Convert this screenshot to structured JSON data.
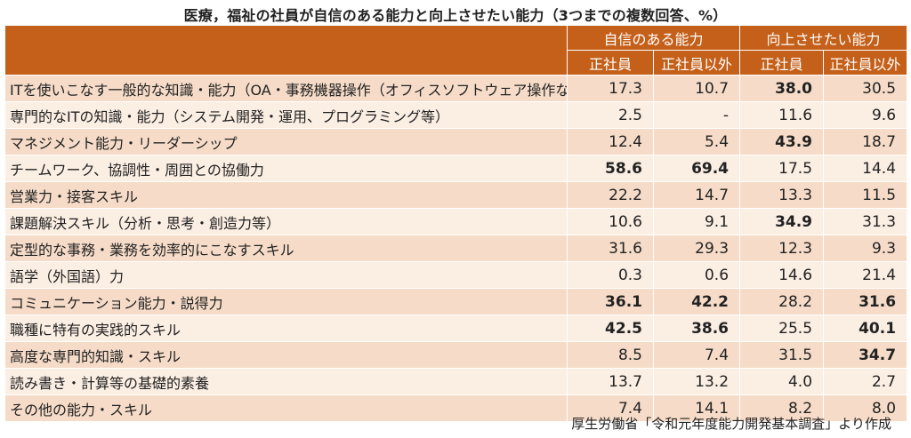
{
  "title": "医療，福祉の社員が自信のある能力と向上させたい能力（3つまでの複数回答、%）",
  "header": {
    "group1": "自信のある能力",
    "group2": "向上させたい能力",
    "sub": [
      "正社員",
      "正社員以外",
      "正社員",
      "正社員以外"
    ]
  },
  "rows": [
    {
      "label": "ITを使いこなす一般的な知識・能力（OA・事務機器操作（オフィスソフトウェア操作など））",
      "values": [
        "17.3",
        "10.7",
        "38.0",
        "30.5"
      ],
      "bold": [
        false,
        false,
        true,
        false
      ]
    },
    {
      "label": "専門的なITの知識・能力（システム開発・運用、プログラミング等）",
      "values": [
        "2.5",
        "-",
        "11.6",
        "9.6"
      ],
      "bold": [
        false,
        false,
        false,
        false
      ]
    },
    {
      "label": "マネジメント能力・リーダーシップ",
      "values": [
        "12.4",
        "5.4",
        "43.9",
        "18.7"
      ],
      "bold": [
        false,
        false,
        true,
        false
      ]
    },
    {
      "label": "チームワーク、協調性・周囲との協働力",
      "values": [
        "58.6",
        "69.4",
        "17.5",
        "14.4"
      ],
      "bold": [
        true,
        true,
        false,
        false
      ]
    },
    {
      "label": "営業力・接客スキル",
      "values": [
        "22.2",
        "14.7",
        "13.3",
        "11.5"
      ],
      "bold": [
        false,
        false,
        false,
        false
      ]
    },
    {
      "label": "課題解決スキル（分析・思考・創造力等）",
      "values": [
        "10.6",
        "9.1",
        "34.9",
        "31.3"
      ],
      "bold": [
        false,
        false,
        true,
        false
      ]
    },
    {
      "label": "定型的な事務・業務を効率的にこなすスキル",
      "values": [
        "31.6",
        "29.3",
        "12.3",
        "9.3"
      ],
      "bold": [
        false,
        false,
        false,
        false
      ]
    },
    {
      "label": "語学（外国語）力",
      "values": [
        "0.3",
        "0.6",
        "14.6",
        "21.4"
      ],
      "bold": [
        false,
        false,
        false,
        false
      ]
    },
    {
      "label": "コミュニケーション能力・説得力",
      "values": [
        "36.1",
        "42.2",
        "28.2",
        "31.6"
      ],
      "bold": [
        true,
        true,
        false,
        true
      ]
    },
    {
      "label": "職種に特有の実践的スキル",
      "values": [
        "42.5",
        "38.6",
        "25.5",
        "40.1"
      ],
      "bold": [
        true,
        true,
        false,
        true
      ]
    },
    {
      "label": "高度な専門的知識・スキル",
      "values": [
        "8.5",
        "7.4",
        "31.5",
        "34.7"
      ],
      "bold": [
        false,
        false,
        false,
        true
      ]
    },
    {
      "label": "読み書き・計算等の基礎的素養",
      "values": [
        "13.7",
        "13.2",
        "4.0",
        "2.7"
      ],
      "bold": [
        false,
        false,
        false,
        false
      ]
    },
    {
      "label": "その他の能力・スキル",
      "values": [
        "7.4",
        "14.1",
        "8.2",
        "8.0"
      ],
      "bold": [
        false,
        false,
        false,
        false
      ]
    }
  ],
  "source": "厚生労働省「令和元年度能力開発基本調査」より作成",
  "colors": {
    "header": "#c4601a",
    "row_dark": "#f6dcc8",
    "row_light": "#fbeee3"
  }
}
